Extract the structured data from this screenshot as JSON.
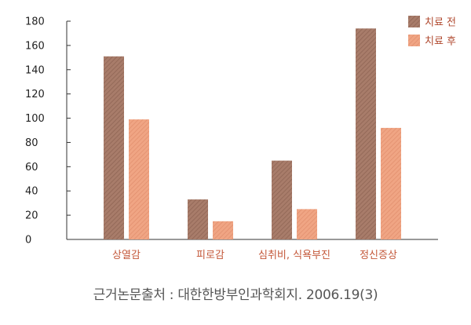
{
  "chart_data": {
    "type": "bar",
    "categories": [
      "상열감",
      "피로감",
      "심취비, 식욕부진",
      "정신증상"
    ],
    "series": [
      {
        "name": "치료 전",
        "values": [
          151,
          33,
          65,
          174
        ],
        "color": "#a87c6a"
      },
      {
        "name": "치료 후",
        "values": [
          99,
          15,
          25,
          92
        ],
        "color": "#f0a584"
      }
    ],
    "yticks": [
      0,
      20,
      40,
      60,
      80,
      100,
      120,
      140,
      160,
      180
    ],
    "ylim": [
      0,
      180
    ],
    "title": "",
    "xlabel": "",
    "ylabel": "",
    "legend_position": "top-right",
    "grid": false
  },
  "source_text": "근거논문출처 : 대한한방부인과학회지. 2006.19(3)"
}
